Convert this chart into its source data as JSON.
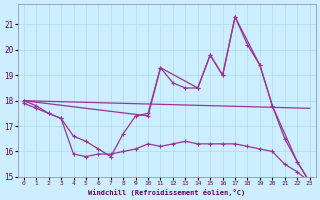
{
  "xlabel": "Windchill (Refroidissement éolien,°C)",
  "background_color": "#cceeff",
  "grid_color": "#aaddee",
  "line_color": "#993399",
  "xlim": [
    -0.5,
    23.5
  ],
  "ylim": [
    15,
    21.8
  ],
  "yticks": [
    15,
    16,
    17,
    18,
    19,
    20,
    21
  ],
  "xticks": [
    0,
    1,
    2,
    3,
    4,
    5,
    6,
    7,
    8,
    9,
    10,
    11,
    12,
    13,
    14,
    15,
    16,
    17,
    18,
    19,
    20,
    21,
    22,
    23
  ],
  "line1_x": [
    0,
    1,
    2,
    3,
    4,
    5,
    6,
    7,
    8,
    9,
    10,
    11,
    12,
    13,
    14,
    15,
    16,
    17,
    18,
    19,
    20,
    21,
    22,
    23
  ],
  "line1_y": [
    17.9,
    17.7,
    17.5,
    17.3,
    15.9,
    15.8,
    15.9,
    15.9,
    16.0,
    16.1,
    16.3,
    16.2,
    16.3,
    16.4,
    16.3,
    16.3,
    16.3,
    16.3,
    16.2,
    16.1,
    16.0,
    15.5,
    15.2,
    14.8
  ],
  "line2_x": [
    0,
    1,
    2,
    3,
    4,
    5,
    6,
    7,
    8,
    9,
    10,
    11,
    12,
    13,
    14,
    15,
    16,
    17,
    18,
    19,
    20,
    21,
    22,
    23
  ],
  "line2_y": [
    18.0,
    17.8,
    17.5,
    17.3,
    16.6,
    16.4,
    16.1,
    15.8,
    16.7,
    17.4,
    17.5,
    19.3,
    18.7,
    18.5,
    18.5,
    19.8,
    19.0,
    21.3,
    20.2,
    19.4,
    17.8,
    16.5,
    15.6,
    14.8
  ],
  "line3_x": [
    0,
    23
  ],
  "line3_y": [
    18.0,
    17.7
  ],
  "line4_x": [
    0,
    10,
    11,
    14,
    15,
    16,
    17,
    19,
    20,
    22,
    23
  ],
  "line4_y": [
    18.0,
    17.4,
    19.3,
    18.5,
    19.8,
    19.0,
    21.3,
    19.4,
    17.8,
    15.6,
    14.8
  ]
}
